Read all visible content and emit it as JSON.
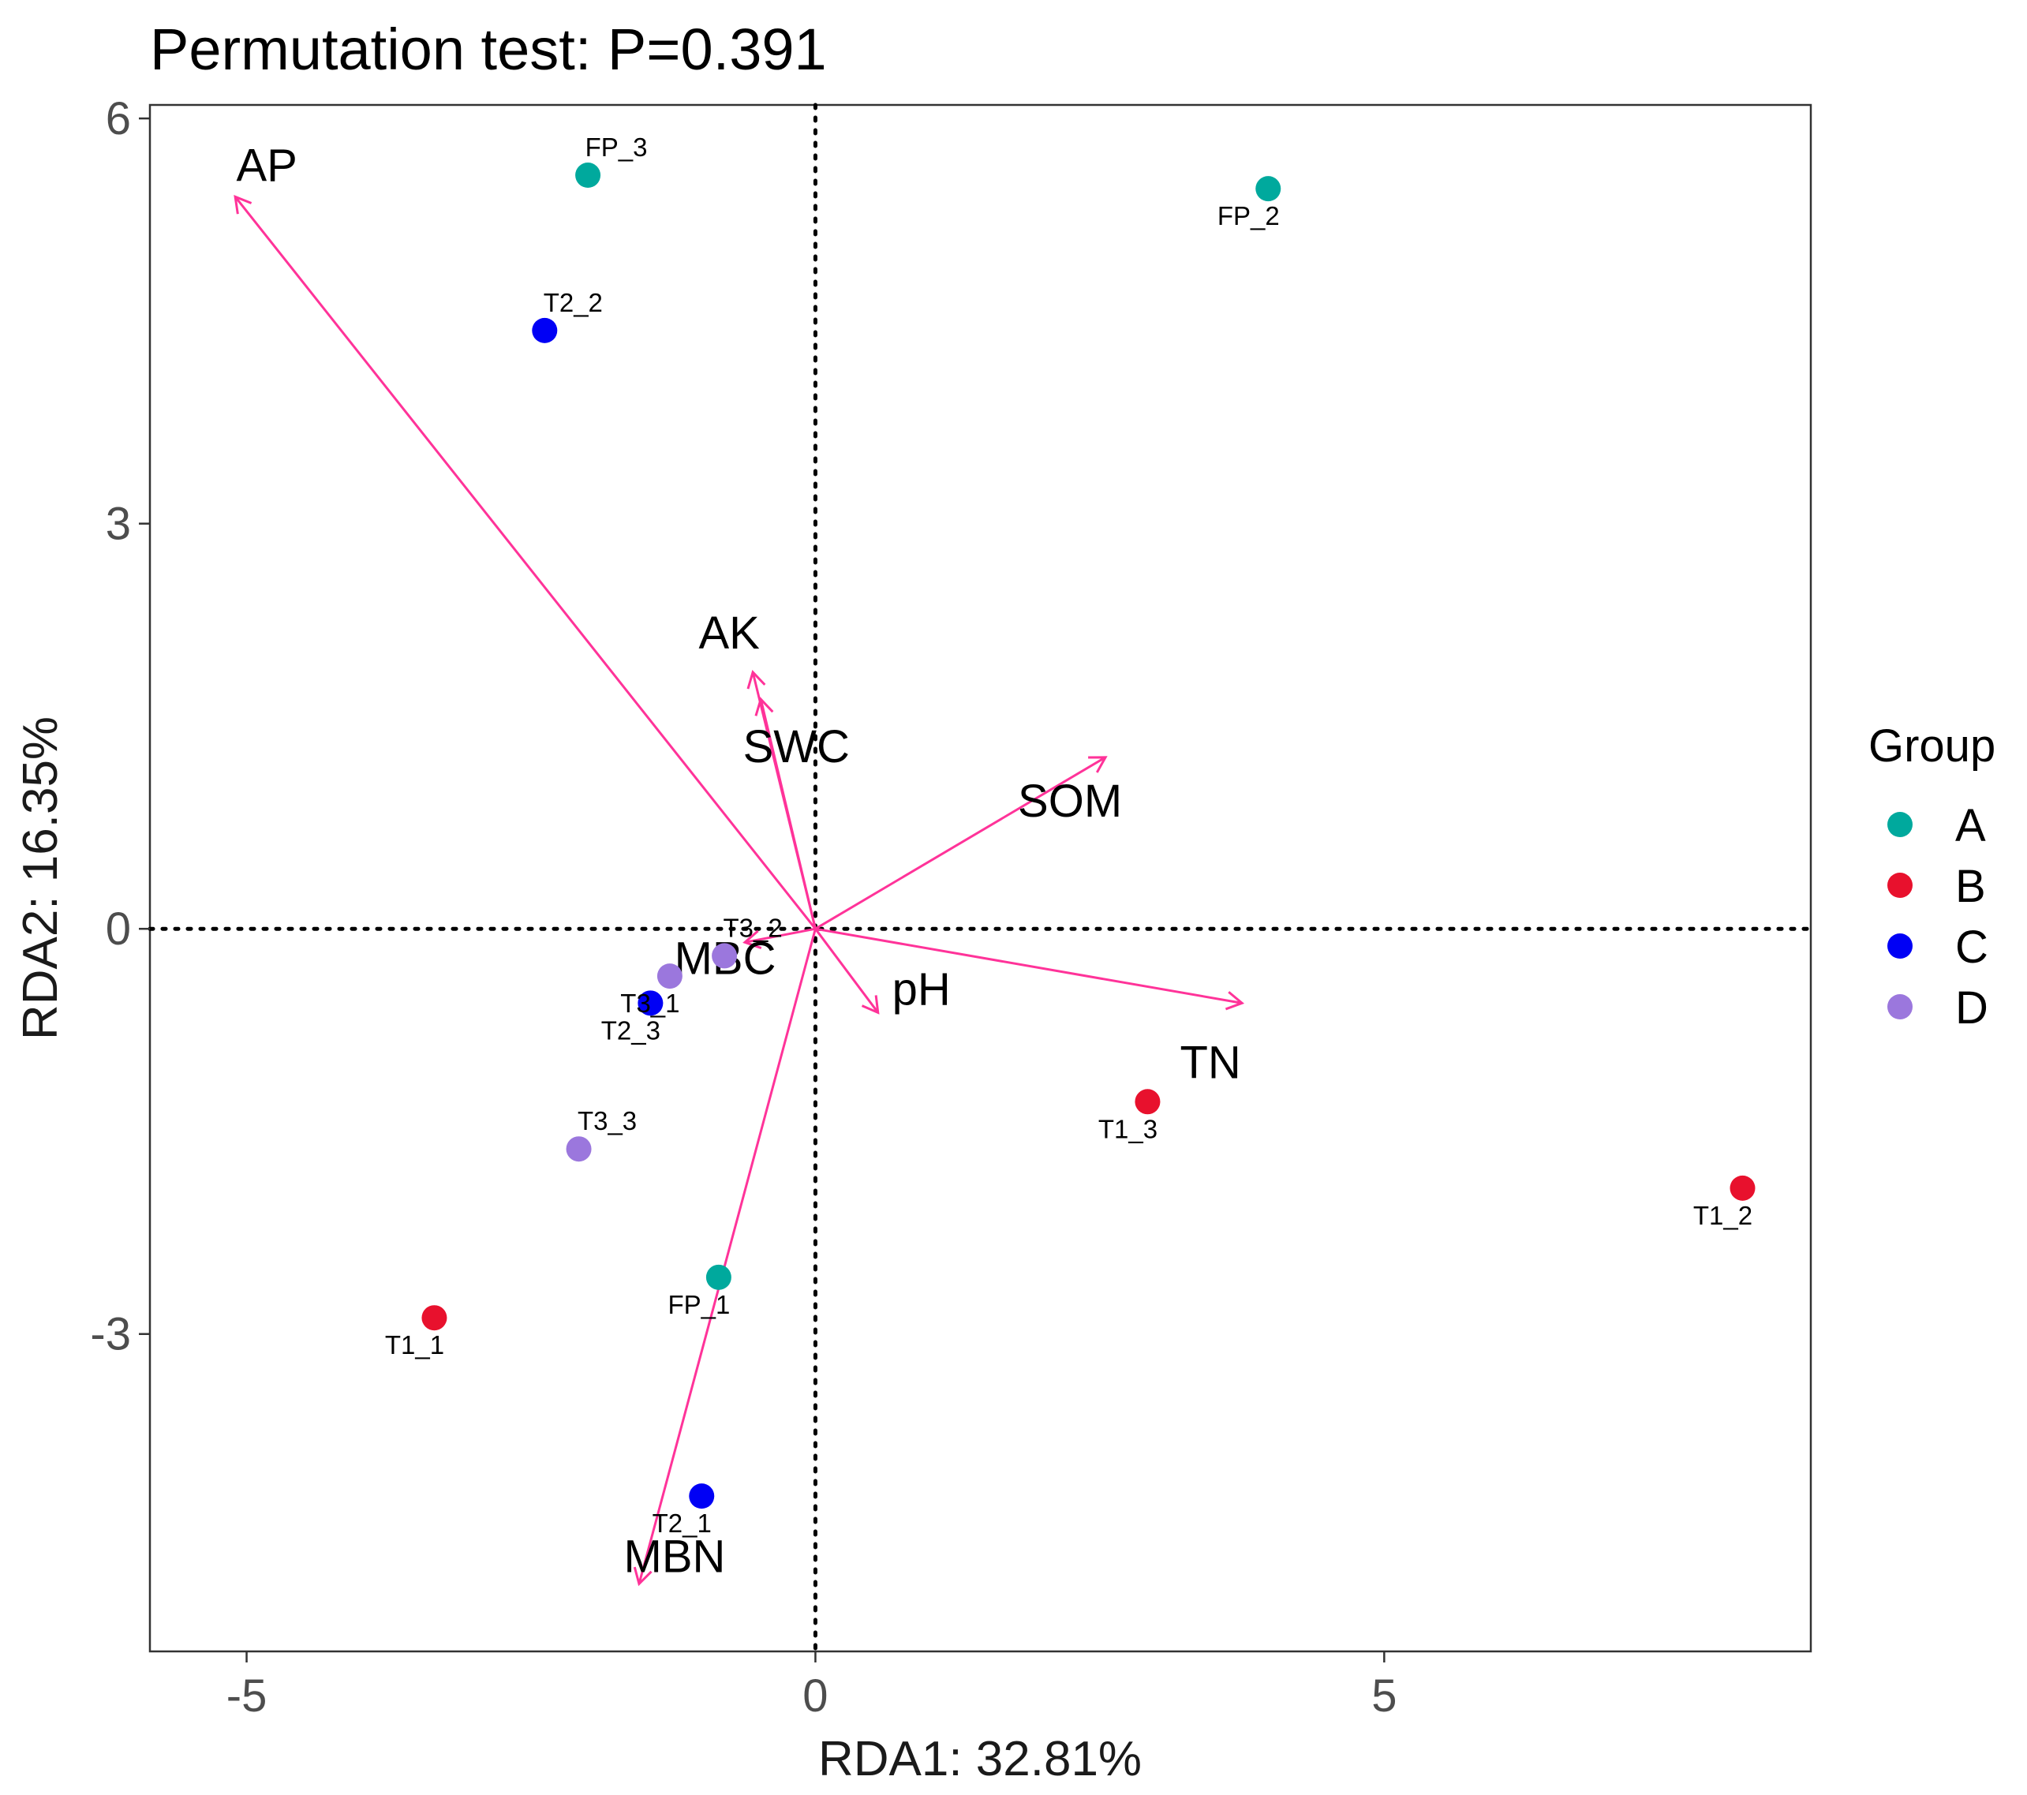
{
  "chart_data": {
    "type": "scatter",
    "title": "Permutation test: P=0.391",
    "xlabel": "RDA1: 32.81%",
    "ylabel": "RDA2: 16.35%",
    "xlim": [
      -5.85,
      8.75
    ],
    "ylim": [
      -5.35,
      6.1
    ],
    "xticks": [
      -5,
      0,
      5
    ],
    "yticks": [
      -3,
      0,
      3,
      6
    ],
    "tick_labels_x": [
      "-5",
      "0",
      "5"
    ],
    "tick_labels_y": [
      "-3",
      "0",
      "3",
      "6"
    ],
    "reference_lines": {
      "x": 0,
      "y": 0,
      "style": "dotted"
    },
    "grid": false,
    "legend": {
      "title": "Group",
      "placement": "right",
      "entries": [
        {
          "name": "A",
          "color": "#00A99D"
        },
        {
          "name": "B",
          "color": "#E8112D"
        },
        {
          "name": "C",
          "color": "#0000F5"
        },
        {
          "name": "D",
          "color": "#9B77DD"
        }
      ]
    },
    "arrow_color": "#FF3399",
    "points": [
      {
        "label": "FP_1",
        "group": "A",
        "x": -0.85,
        "y": -2.58
      },
      {
        "label": "FP_2",
        "group": "A",
        "x": 3.98,
        "y": 5.48
      },
      {
        "label": "FP_3",
        "group": "A",
        "x": -2.0,
        "y": 5.58
      },
      {
        "label": "T1_1",
        "group": "B",
        "x": -3.35,
        "y": -2.88
      },
      {
        "label": "T1_2",
        "group": "B",
        "x": 8.15,
        "y": -1.92
      },
      {
        "label": "T1_3",
        "group": "B",
        "x": 2.92,
        "y": -1.28
      },
      {
        "label": "T2_1",
        "group": "C",
        "x": -1.0,
        "y": -4.2
      },
      {
        "label": "T2_2",
        "group": "C",
        "x": -2.38,
        "y": 4.43
      },
      {
        "label": "T2_3",
        "group": "C",
        "x": -1.45,
        "y": -0.55
      },
      {
        "label": "T3_1",
        "group": "D",
        "x": -1.28,
        "y": -0.35
      },
      {
        "label": "T3_2",
        "group": "D",
        "x": -0.8,
        "y": -0.2
      },
      {
        "label": "T3_3",
        "group": "D",
        "x": -2.08,
        "y": -1.63
      }
    ],
    "arrows": [
      {
        "label": "AP",
        "x": -5.1,
        "y": 5.42
      },
      {
        "label": "AK",
        "x": -0.55,
        "y": 1.9
      },
      {
        "label": "SWC",
        "x": -0.48,
        "y": 1.7
      },
      {
        "label": "SOM",
        "x": 2.55,
        "y": 1.27
      },
      {
        "label": "MBC",
        "x": -0.62,
        "y": -0.1
      },
      {
        "label": "pH",
        "x": 0.55,
        "y": -0.62
      },
      {
        "label": "TN",
        "x": 3.75,
        "y": -0.55
      },
      {
        "label": "MBN",
        "x": -1.55,
        "y": -4.85
      }
    ]
  }
}
